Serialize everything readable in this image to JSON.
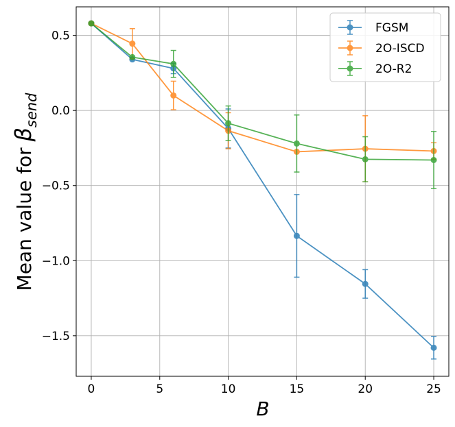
{
  "chart_data": {
    "type": "line",
    "title": "",
    "xlabel": "B",
    "ylabel_prefix": "Mean value for ",
    "ylabel_symbol": "β",
    "ylabel_subscript": "send",
    "xlim": [
      -1.1,
      26.1
    ],
    "ylim": [
      -1.77,
      0.69
    ],
    "xticks": [
      0,
      5,
      10,
      15,
      20,
      25
    ],
    "yticks": [
      0.5,
      0.0,
      -0.5,
      -1.0,
      -1.5
    ],
    "ytick_labels": [
      "0.5",
      "0.0",
      "−0.5",
      "−1.0",
      "−1.5"
    ],
    "grid": true,
    "legend_position": "top-right",
    "series": [
      {
        "name": "FGSM",
        "color": "#1f77b4",
        "x": [
          0,
          3,
          6,
          10,
          15,
          20,
          25
        ],
        "y": [
          0.58,
          0.34,
          0.28,
          -0.12,
          -0.835,
          -1.155,
          -1.58
        ],
        "err": [
          0.0,
          0.0,
          0.035,
          0.13,
          0.275,
          0.095,
          0.075
        ]
      },
      {
        "name": "2O-ISCD",
        "color": "#ff7f0e",
        "x": [
          0,
          3,
          6,
          10,
          15,
          20,
          25
        ],
        "y": [
          0.58,
          0.445,
          0.1,
          -0.135,
          -0.275,
          -0.255,
          -0.27
        ],
        "err": [
          0.0,
          0.1,
          0.095,
          0.12,
          0.0,
          0.22,
          0.055
        ]
      },
      {
        "name": "2O-R2",
        "color": "#2ca02c",
        "x": [
          0,
          3,
          6,
          10,
          15,
          20,
          25
        ],
        "y": [
          0.58,
          0.355,
          0.31,
          -0.085,
          -0.22,
          -0.325,
          -0.33
        ],
        "err": [
          0.0,
          0.0,
          0.09,
          0.115,
          0.19,
          0.15,
          0.19
        ]
      }
    ]
  }
}
